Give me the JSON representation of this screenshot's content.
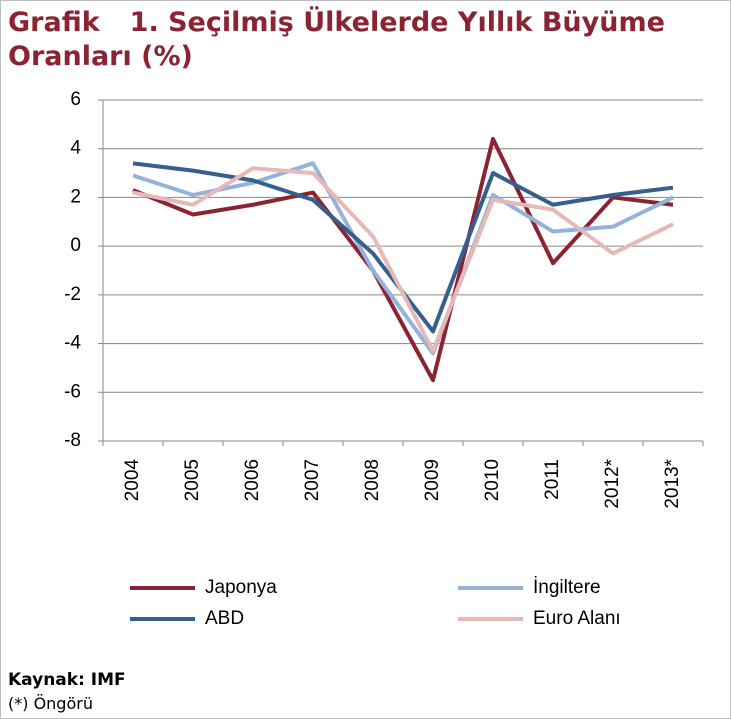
{
  "chart_data": {
    "type": "line",
    "title_label": "Grafik",
    "title": "1. Seçilmiş Ülkelerde Yıllık Büyüme Oranları (%)",
    "categories": [
      "2004",
      "2005",
      "2006",
      "2007",
      "2008",
      "2009",
      "2010",
      "2011",
      "2012*",
      "2013*"
    ],
    "series": [
      {
        "name": "Japonya",
        "color": "#8b2332",
        "values": [
          2.3,
          1.3,
          1.7,
          2.2,
          -1.0,
          -5.5,
          4.4,
          -0.7,
          2.0,
          1.7
        ]
      },
      {
        "name": "İngiltere",
        "color": "#95b3d7",
        "values": [
          2.9,
          2.1,
          2.6,
          3.4,
          -1.0,
          -4.4,
          2.1,
          0.6,
          0.8,
          2.0
        ]
      },
      {
        "name": "ABD",
        "color": "#355f8d",
        "values": [
          3.4,
          3.1,
          2.7,
          1.9,
          -0.3,
          -3.5,
          3.0,
          1.7,
          2.1,
          2.4
        ]
      },
      {
        "name": "Euro Alanı",
        "color": "#e6b9b8",
        "values": [
          2.2,
          1.7,
          3.2,
          3.0,
          0.4,
          -4.3,
          1.9,
          1.5,
          -0.3,
          0.9
        ]
      }
    ],
    "ylim": [
      -8,
      6
    ],
    "yticks": [
      -8,
      -6,
      -4,
      -2,
      0,
      2,
      4,
      6
    ],
    "grid": true,
    "source": "Kaynak: IMF",
    "note": "(*) Öngörü"
  }
}
